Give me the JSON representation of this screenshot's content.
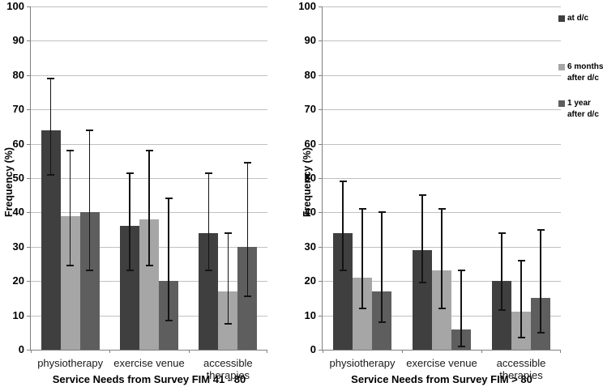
{
  "figure": {
    "background": "#FFFFFF"
  },
  "colors": {
    "gridline": "#C0C0C0",
    "axis": "#808080",
    "error_bar": "#141414",
    "text": "#000000"
  },
  "legend": {
    "items": [
      {
        "label_lines": [
          "at d/c"
        ],
        "color": "#3F3F3F"
      },
      {
        "label_lines": [
          "6 months",
          "after d/c"
        ],
        "color": "#A6A6A6"
      },
      {
        "label_lines": [
          "1 year",
          "after d/c"
        ],
        "color": "#5E5E5E"
      }
    ]
  },
  "chart_data": [
    {
      "type": "bar",
      "title": "Service Needs from Survey FIM 41 - 80",
      "xlabel": "Service Needs from Survey FIM 41 - 80",
      "ylabel": "Frequency (%)",
      "ylim": [
        0,
        100
      ],
      "yticks": [
        0,
        10,
        20,
        30,
        40,
        50,
        60,
        70,
        80,
        90,
        100
      ],
      "grid": true,
      "error_bars": true,
      "categories": [
        "physiotherapy",
        "exercise venue",
        "accessible therapies"
      ],
      "series": [
        {
          "name": "at d/c",
          "color": "#3F3F3F",
          "values": [
            64,
            36,
            34
          ],
          "error_low": [
            51,
            23,
            23
          ],
          "error_high": [
            79,
            51.5,
            51.5
          ]
        },
        {
          "name": "6 months after d/c",
          "color": "#A6A6A6",
          "values": [
            39,
            38,
            17
          ],
          "error_low": [
            24.5,
            24.5,
            7.5
          ],
          "error_high": [
            58,
            58,
            34
          ]
        },
        {
          "name": "1 year after d/c",
          "color": "#5E5E5E",
          "values": [
            40,
            20,
            30
          ],
          "error_low": [
            23,
            8.5,
            15.5
          ],
          "error_high": [
            64,
            44,
            54.5
          ]
        }
      ]
    },
    {
      "type": "bar",
      "title": "Service Needs from Survey FIM > 80",
      "xlabel": "Service Needs from Survey FIM > 80",
      "ylabel": "Frequency (%)",
      "ylim": [
        0,
        100
      ],
      "yticks": [
        0,
        10,
        20,
        30,
        40,
        50,
        60,
        70,
        80,
        90,
        100
      ],
      "grid": true,
      "error_bars": true,
      "legend_position": "right",
      "categories": [
        "physiotherapy",
        "exercise venue",
        "accessible therapies"
      ],
      "series": [
        {
          "name": "at d/c",
          "color": "#3F3F3F",
          "values": [
            34,
            29,
            20
          ],
          "error_low": [
            23,
            19.5,
            11.5
          ],
          "error_high": [
            49,
            45,
            34
          ]
        },
        {
          "name": "6 months after d/c",
          "color": "#A6A6A6",
          "values": [
            21,
            23,
            11
          ],
          "error_low": [
            12,
            12,
            3.5
          ],
          "error_high": [
            41,
            41,
            26
          ]
        },
        {
          "name": "1 year after d/c",
          "color": "#5E5E5E",
          "values": [
            17,
            6,
            15
          ],
          "error_low": [
            8,
            1,
            5
          ],
          "error_high": [
            40,
            23,
            35
          ]
        }
      ]
    }
  ]
}
